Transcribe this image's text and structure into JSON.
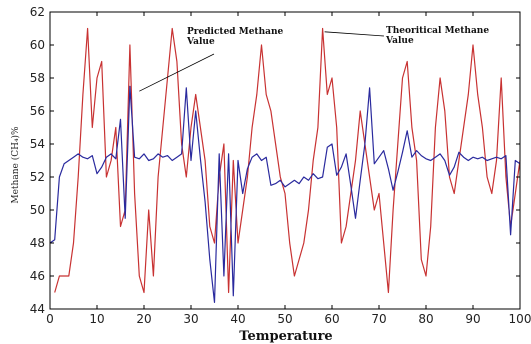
{
  "chart_data": {
    "type": "line",
    "title": "",
    "xlabel": "Temperature",
    "ylabel": "Methane (CH₄)%",
    "xlim": [
      0,
      100
    ],
    "ylim": [
      44,
      62
    ],
    "xticks": [
      0,
      10,
      20,
      30,
      40,
      50,
      60,
      70,
      80,
      90,
      100
    ],
    "yticks": [
      44,
      46,
      48,
      50,
      52,
      54,
      56,
      58,
      60,
      62
    ],
    "grid": false,
    "annotations": [
      {
        "text_lines": [
          "Predicted Methane",
          "Value"
        ],
        "series": "predicted"
      },
      {
        "text_lines": [
          "Theoritical Methane",
          "Value"
        ],
        "series": "theoretical"
      }
    ],
    "series": [
      {
        "id": "theoretical",
        "color": "#c83232",
        "x": [
          1,
          2,
          3,
          4,
          5,
          6,
          7,
          8,
          9,
          10,
          11,
          12,
          13,
          14,
          15,
          16,
          17,
          18,
          19,
          20,
          21,
          22,
          23,
          24,
          25,
          26,
          27,
          28,
          29,
          30,
          31,
          32,
          33,
          34,
          35,
          36,
          37,
          38,
          39,
          40,
          41,
          42,
          43,
          44,
          45,
          46,
          47,
          48,
          49,
          50,
          51,
          52,
          53,
          54,
          55,
          56,
          57,
          58,
          59,
          60,
          61,
          62,
          63,
          64,
          65,
          66,
          67,
          68,
          69,
          70,
          71,
          72,
          73,
          74,
          75,
          76,
          77,
          78,
          79,
          80,
          81,
          82,
          83,
          84,
          85,
          86,
          87,
          88,
          89,
          90,
          91,
          92,
          93,
          94,
          95,
          96,
          97,
          98,
          99,
          100
        ],
        "values": [
          45,
          46,
          46,
          46,
          48,
          52,
          57,
          61,
          55,
          58,
          59,
          52,
          53,
          55,
          49,
          50,
          60,
          51,
          46,
          45,
          50,
          46,
          52,
          55,
          58,
          61,
          59,
          54,
          52,
          55,
          57,
          55,
          53,
          49,
          48,
          52,
          54,
          45,
          53,
          48,
          50,
          52,
          55,
          57,
          60,
          57,
          56,
          54,
          52,
          51,
          48,
          46,
          47,
          48,
          50,
          53,
          55,
          61,
          57,
          58,
          55,
          48,
          49,
          51,
          53,
          56,
          54,
          52,
          50,
          51,
          48,
          45,
          50,
          54,
          58,
          59,
          55,
          53,
          47,
          46,
          49,
          55,
          58,
          56,
          52,
          51,
          53,
          55,
          57,
          60,
          57,
          55,
          52,
          51,
          53,
          58,
          52,
          49,
          51,
          53
        ]
      },
      {
        "id": "predicted",
        "color": "#2a2a9e",
        "x": [
          0,
          1,
          2,
          3,
          4,
          5,
          6,
          7,
          8,
          9,
          10,
          11,
          12,
          13,
          14,
          15,
          16,
          17,
          18,
          19,
          20,
          21,
          22,
          23,
          24,
          25,
          26,
          27,
          28,
          29,
          30,
          31,
          32,
          33,
          34,
          35,
          36,
          37,
          38,
          39,
          40,
          41,
          42,
          43,
          44,
          45,
          46,
          47,
          48,
          49,
          50,
          51,
          52,
          53,
          54,
          55,
          56,
          57,
          58,
          59,
          60,
          61,
          62,
          63,
          64,
          65,
          66,
          67,
          68,
          69,
          70,
          71,
          72,
          73,
          74,
          75,
          76,
          77,
          78,
          79,
          80,
          81,
          82,
          83,
          84,
          85,
          86,
          87,
          88,
          89,
          90,
          91,
          92,
          93,
          94,
          95,
          96,
          97,
          98,
          99,
          100
        ],
        "values": [
          48,
          48.2,
          52,
          52.8,
          53,
          53.2,
          53.4,
          53.2,
          53.1,
          53.3,
          52.2,
          52.6,
          53.2,
          53.4,
          53.1,
          55.5,
          49.5,
          57.5,
          53.2,
          53.1,
          53.4,
          53.0,
          53.1,
          53.4,
          53.2,
          53.3,
          53.0,
          53.2,
          53.4,
          57.4,
          53.0,
          56,
          53.1,
          50.5,
          47,
          44.4,
          53.4,
          46,
          53.4,
          44.8,
          53.0,
          51,
          52.5,
          53.2,
          53.4,
          53.0,
          53.2,
          51.5,
          51.6,
          51.8,
          51.4,
          51.6,
          51.8,
          51.6,
          52,
          51.8,
          52.2,
          51.9,
          52,
          53.8,
          54,
          52.1,
          52.6,
          53.4,
          51.5,
          49.5,
          51.8,
          54,
          57.4,
          52.8,
          53.2,
          53.6,
          52.5,
          51.2,
          52.3,
          53.5,
          54.8,
          53.2,
          53.6,
          53.3,
          53.1,
          53.0,
          53.2,
          53.4,
          53.0,
          52.1,
          52.6,
          53.5,
          53.2,
          53.0,
          53.2,
          53.1,
          53.2,
          53.0,
          53.1,
          53.2,
          53.1,
          53.3,
          48.5,
          53.0,
          52.8
        ]
      }
    ]
  }
}
